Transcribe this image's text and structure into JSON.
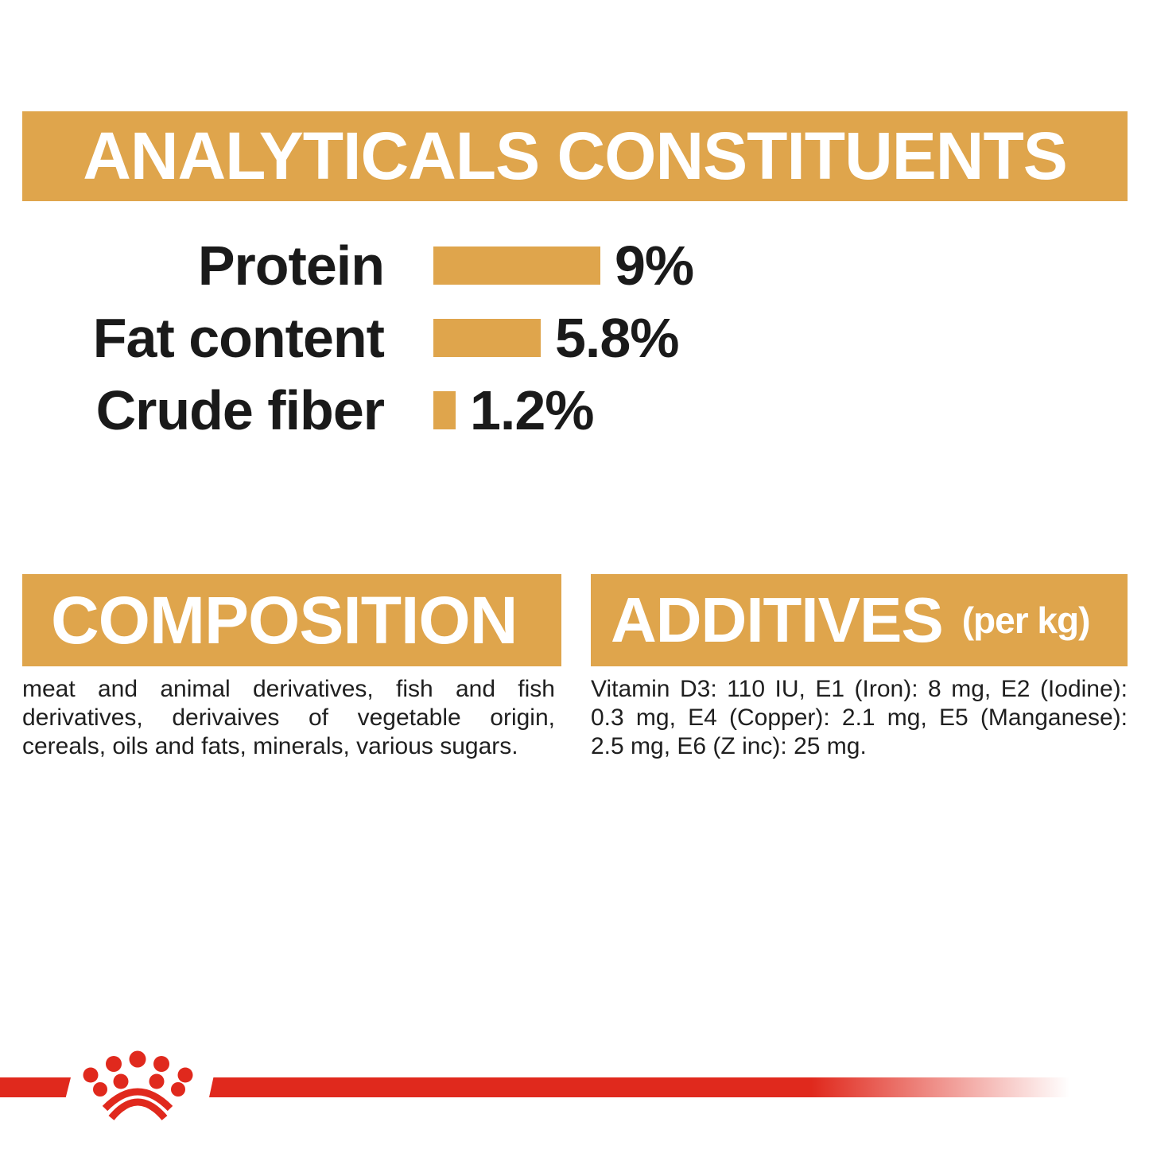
{
  "colors": {
    "gold": "#DFA54C",
    "red": "#E0291D",
    "text": "#1A1A1A",
    "banner_text": "#FFFFFF",
    "background": "#FFFFFF"
  },
  "analyticals": {
    "title": "ANALYTICALS CONSTITUENTS",
    "chart_data": {
      "type": "bar",
      "orientation": "horizontal",
      "categories": [
        "Protein",
        "Fat content",
        "Crude fiber"
      ],
      "values": [
        9,
        5.8,
        1.2
      ],
      "value_labels": [
        "9%",
        "5.8%",
        "1.2%"
      ],
      "unit": "%",
      "max_value": 9,
      "bar_color": "#DFA54C",
      "title": "ANALYTICALS CONSTITUENTS",
      "xlabel": "",
      "ylabel": "",
      "grid": false,
      "legend": false,
      "axes_shown": false
    }
  },
  "composition": {
    "title": "COMPOSITION",
    "body": "meat and animal derivatives, fish and fish derivatives, derivaives of vegetable origin, cereals, oils and fats, minerals, various sugars."
  },
  "additives": {
    "title": "ADDITIVES",
    "title_suffix": "(per kg)",
    "body": "Vitamin D3: 110 IU, E1 (Iron): 8 mg, E2 (Iodine): 0.3 mg, E4 (Copper): 2.1 mg, E5 (Manganese): 2.5 mg, E6 (Z inc): 25 mg."
  },
  "footer": {
    "logo_icon": "royal-canin-crown"
  }
}
